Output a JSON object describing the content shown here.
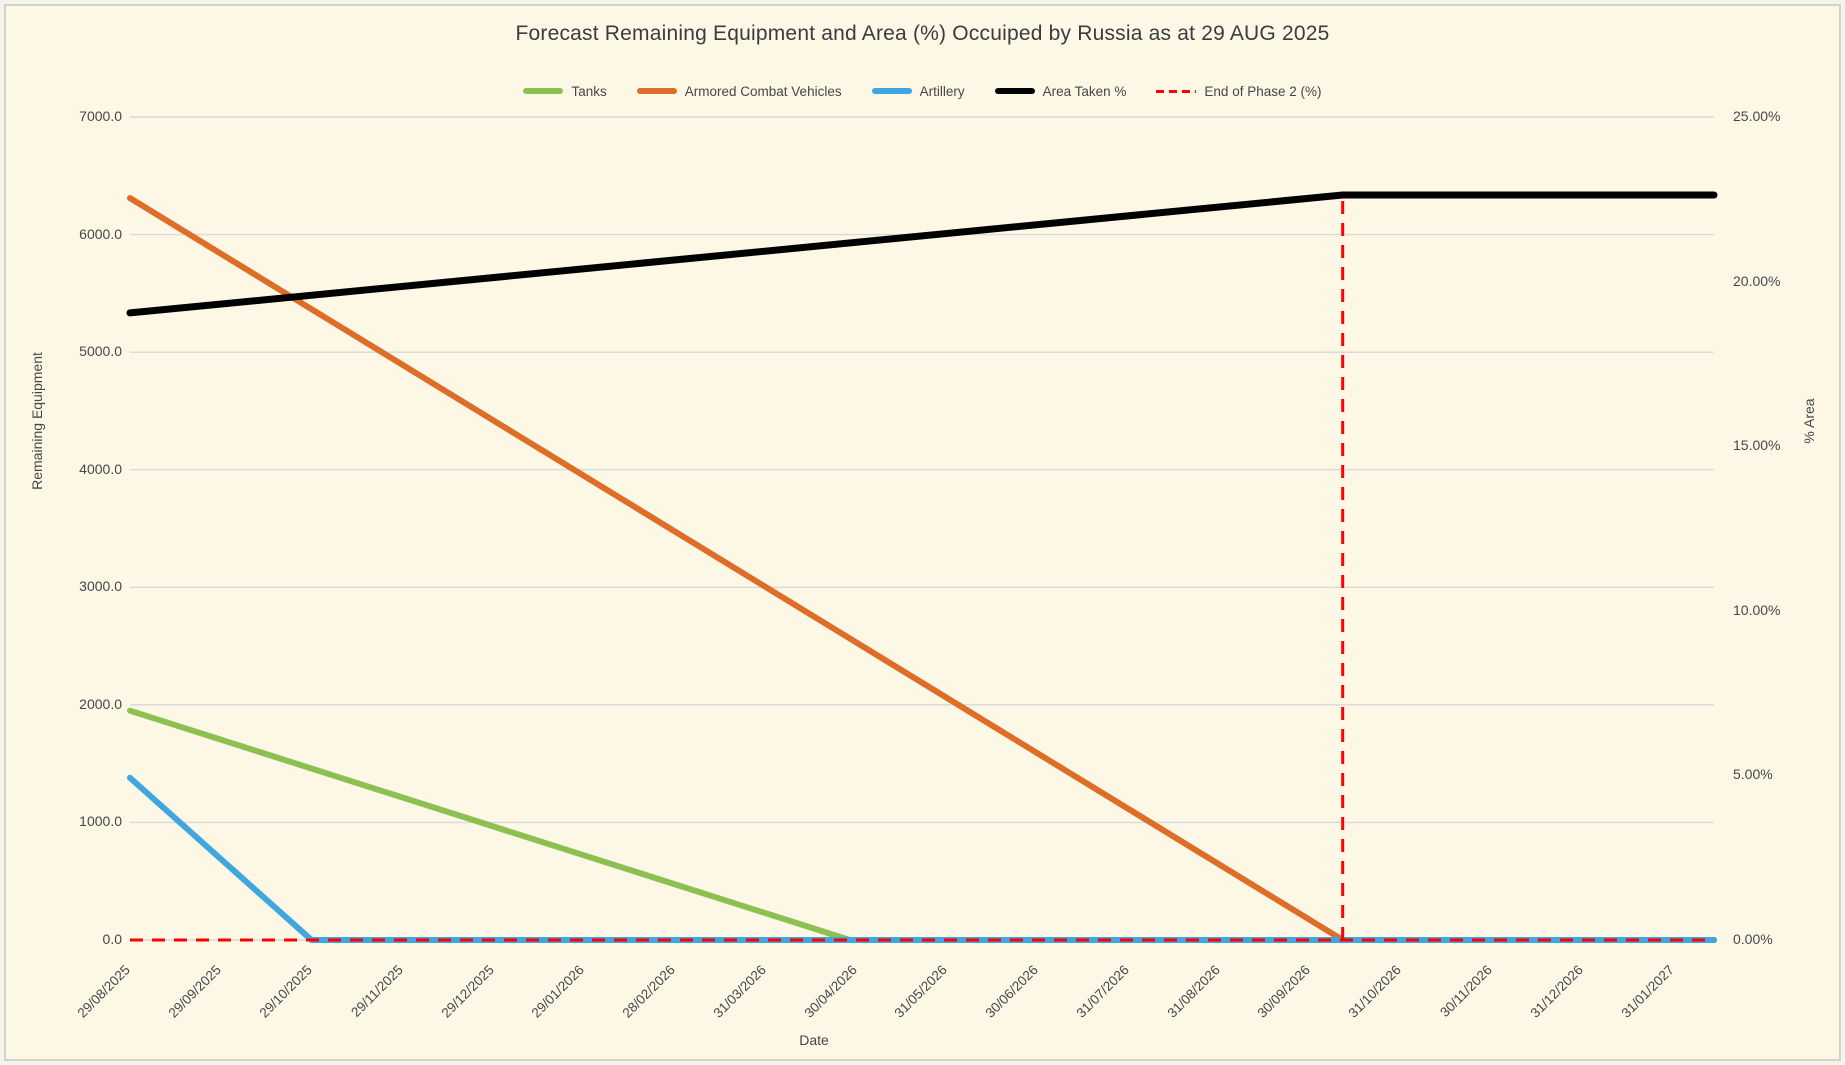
{
  "colors": {
    "background": "#FDF7E6",
    "grid": "#D9D9D9",
    "text": "#45474A",
    "frame_border": "#D5D2C6"
  },
  "chart_data": {
    "type": "line",
    "title": "Forecast Remaining Equipment and Area (%) Occuiped by Russia as at 29 AUG 2025",
    "legend_position": "top",
    "grid": "horizontal-only",
    "x_axis": {
      "title": "Date",
      "labels": [
        "29/08/2025",
        "29/09/2025",
        "29/10/2025",
        "29/11/2025",
        "29/12/2025",
        "29/01/2026",
        "28/02/2026",
        "31/03/2026",
        "30/04/2026",
        "31/05/2026",
        "30/06/2026",
        "31/07/2026",
        "31/08/2026",
        "30/09/2026",
        "31/10/2026",
        "30/11/2026",
        "31/12/2026",
        "31/01/2027"
      ],
      "index_extent": 17.45
    },
    "y_left": {
      "title": "Remaining Equipment",
      "min": 0,
      "max": 7000,
      "step": 1000,
      "tick_labels": [
        "7000.0",
        "6000.0",
        "5000.0",
        "4000.0",
        "3000.0",
        "2000.0",
        "1000.0",
        "0.0"
      ]
    },
    "y_right": {
      "title": "% Area",
      "min": 0,
      "max": 25,
      "step": 5,
      "tick_labels": [
        "25.00%",
        "20.00%",
        "15.00%",
        "10.00%",
        "5.00%",
        "0.00%"
      ]
    },
    "series": [
      {
        "name": "Tanks",
        "color": "#8CC152",
        "axis": "left",
        "width": 6,
        "points": [
          {
            "date": "29/08/2025",
            "index": 0,
            "value": 1950
          },
          {
            "date": "28/04/2026",
            "index": 7.93,
            "value": 0
          },
          {
            "date": "chart-end",
            "index": 17.45,
            "value": 0
          }
        ]
      },
      {
        "name": "Armored Combat Vehicles",
        "color": "#DE6D28",
        "axis": "left",
        "width": 6,
        "points": [
          {
            "date": "29/08/2025",
            "index": 0,
            "value": 6310
          },
          {
            "date": "11/10/2026",
            "index": 13.36,
            "value": 0
          },
          {
            "date": "chart-end",
            "index": 17.45,
            "value": 0
          }
        ]
      },
      {
        "name": "Artillery",
        "color": "#3FA6DE",
        "axis": "left",
        "width": 6,
        "points": [
          {
            "date": "29/08/2025",
            "index": 0,
            "value": 1380
          },
          {
            "date": "29/10/2025",
            "index": 2,
            "value": 0
          },
          {
            "date": "chart-end",
            "index": 17.45,
            "value": 0
          }
        ]
      },
      {
        "name": "Area Taken %",
        "color": "#000000",
        "axis": "right",
        "width": 7,
        "points": [
          {
            "date": "29/08/2025",
            "index": 0,
            "value": 19.05
          },
          {
            "date": "11/10/2026",
            "index": 13.36,
            "value": 22.63
          },
          {
            "date": "chart-end",
            "index": 17.45,
            "value": 22.63
          }
        ]
      },
      {
        "name": "End of Phase 2 (%)",
        "color": "#FF0000",
        "axis": "right",
        "width": 3,
        "dash": "13 9",
        "segments": [
          {
            "points": [
              {
                "date": "29/08/2025",
                "index": 0,
                "value": 0
              },
              {
                "date": "chart-end",
                "index": 17.38,
                "value": 0
              }
            ]
          },
          {
            "points": [
              {
                "date": "11/10/2026",
                "index": 13.36,
                "value": 0
              },
              {
                "date": "11/10/2026",
                "index": 13.36,
                "value": 22.63
              }
            ]
          }
        ]
      }
    ]
  }
}
